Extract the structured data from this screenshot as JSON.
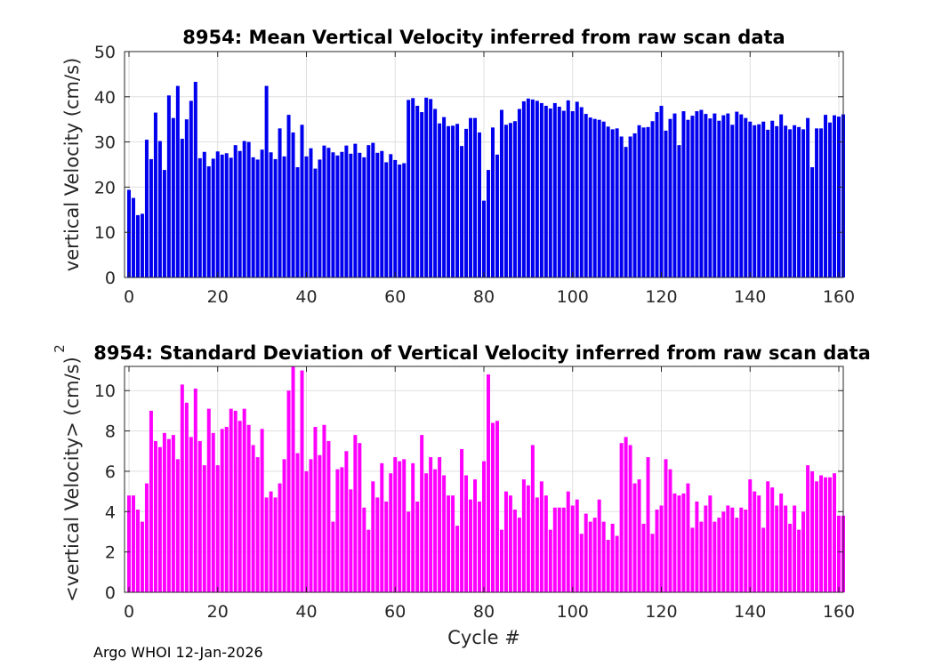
{
  "chart_data": [
    {
      "type": "bar",
      "title": "8954: Mean Vertical Velocity inferred from raw scan data",
      "xlabel": "",
      "ylabel": "vertical Velocity (cm/s)",
      "xlim": [
        -1,
        161
      ],
      "ylim": [
        0,
        50
      ],
      "xticks": [
        0,
        20,
        40,
        60,
        80,
        100,
        120,
        140,
        160
      ],
      "yticks": [
        0,
        10,
        20,
        30,
        40,
        50
      ],
      "grid": true,
      "color": "#0000ee",
      "x_start": 0,
      "values": [
        19.4,
        17.6,
        13.8,
        14.1,
        30.5,
        26.2,
        36.5,
        30.2,
        23.8,
        40.3,
        35.3,
        42.4,
        30.7,
        35.0,
        39.1,
        43.3,
        26.4,
        27.8,
        24.6,
        26.3,
        27.9,
        27.2,
        27.5,
        26.5,
        29.3,
        28.0,
        30.2,
        30.0,
        26.6,
        26.1,
        28.3,
        42.4,
        27.7,
        26.2,
        33.0,
        26.8,
        36.0,
        32.1,
        24.4,
        33.8,
        26.8,
        28.6,
        24.1,
        26.1,
        29.2,
        28.7,
        27.7,
        27.0,
        27.8,
        29.2,
        27.4,
        29.6,
        27.6,
        26.6,
        29.3,
        29.8,
        27.6,
        28.0,
        25.5,
        27.3,
        26.0,
        25.0,
        25.3,
        39.3,
        39.7,
        38.0,
        36.6,
        39.8,
        39.5,
        37.3,
        34.1,
        35.5,
        33.5,
        33.6,
        34.0,
        29.1,
        32.9,
        35.3,
        35.3,
        32.1,
        17.0,
        23.8,
        33.2,
        27.2,
        37.1,
        33.8,
        34.2,
        34.6,
        37.3,
        39.0,
        39.6,
        39.4,
        39.1,
        38.6,
        38.0,
        37.4,
        38.6,
        37.8,
        36.9,
        39.2,
        36.8,
        38.9,
        37.7,
        36.2,
        35.4,
        35.1,
        34.9,
        34.5,
        33.4,
        32.8,
        33.0,
        31.2,
        28.9,
        31.2,
        31.9,
        33.7,
        33.2,
        33.3,
        34.6,
        36.6,
        38.0,
        32.5,
        35.1,
        36.3,
        29.3,
        36.8,
        34.9,
        35.8,
        36.8,
        37.1,
        36.2,
        35.2,
        36.3,
        34.7,
        35.9,
        36.3,
        33.8,
        36.7,
        36.1,
        35.3,
        34.5,
        33.7,
        33.9,
        34.5,
        32.7,
        34.7,
        33.5,
        36.1,
        33.6,
        32.8,
        33.7,
        33.3,
        32.8,
        35.3,
        24.4,
        33.0,
        33.0,
        36.0,
        34.3,
        35.9,
        35.6,
        36.1
      ]
    },
    {
      "type": "bar",
      "title": "8954: Standard Deviation of Vertical Velocity inferred from raw scan data",
      "xlabel": "Cycle #",
      "ylabel": "<vertical Velocity> (cm/s)",
      "ylabel_exponent": "2",
      "xlim": [
        -1,
        161
      ],
      "ylim": [
        0,
        11.2
      ],
      "xticks": [
        0,
        20,
        40,
        60,
        80,
        100,
        120,
        140,
        160
      ],
      "yticks": [
        0,
        2,
        4,
        6,
        8,
        10
      ],
      "grid": true,
      "color": "#ff00ff",
      "x_start": 0,
      "values": [
        4.8,
        4.8,
        4.1,
        3.5,
        5.4,
        9.0,
        7.5,
        7.2,
        7.9,
        7.6,
        7.8,
        6.6,
        10.3,
        9.4,
        7.7,
        10.1,
        7.5,
        6.3,
        9.1,
        7.9,
        6.3,
        8.1,
        8.2,
        9.1,
        9.0,
        8.5,
        9.1,
        8.3,
        7.3,
        6.7,
        8.1,
        4.7,
        5.0,
        4.7,
        5.4,
        6.6,
        10.0,
        11.2,
        6.9,
        11.0,
        6.0,
        6.6,
        8.2,
        6.8,
        8.3,
        7.5,
        3.5,
        6.1,
        6.2,
        7.0,
        5.1,
        7.8,
        7.4,
        4.2,
        3.1,
        5.5,
        4.7,
        6.4,
        4.5,
        5.9,
        6.7,
        6.5,
        6.6,
        4.0,
        6.4,
        4.5,
        7.8,
        5.9,
        6.7,
        6.1,
        6.7,
        5.8,
        4.8,
        4.8,
        3.3,
        7.1,
        5.8,
        4.6,
        5.6,
        4.5,
        6.5,
        10.8,
        8.4,
        8.5,
        3.1,
        5.0,
        4.8,
        4.1,
        3.7,
        5.6,
        5.3,
        7.3,
        4.7,
        5.5,
        4.8,
        3.1,
        4.2,
        4.2,
        4.2,
        5.0,
        4.3,
        4.6,
        2.9,
        3.9,
        3.5,
        3.7,
        4.6,
        3.5,
        2.6,
        3.4,
        2.8,
        7.4,
        7.7,
        7.3,
        5.4,
        5.6,
        3.4,
        6.7,
        2.9,
        4.1,
        4.3,
        6.6,
        6.1,
        4.9,
        4.8,
        4.9,
        5.4,
        3.2,
        4.5,
        3.5,
        4.3,
        4.8,
        3.5,
        3.7,
        4.0,
        4.3,
        4.2,
        3.7,
        4.2,
        4.1,
        5.6,
        5.0,
        4.8,
        3.2,
        5.5,
        5.2,
        4.3,
        4.9,
        4.3,
        3.4,
        4.3,
        3.1,
        4.0,
        6.3,
        6.0,
        5.5,
        5.8,
        5.7,
        5.7,
        5.9,
        3.8,
        3.8
      ]
    }
  ],
  "footer": "Argo WHOI 12-Jan-2026"
}
